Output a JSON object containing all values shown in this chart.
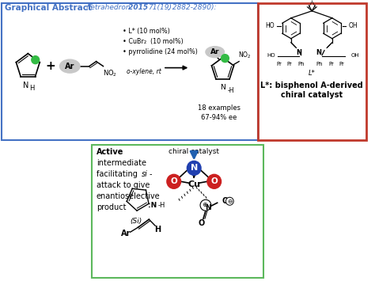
{
  "bg_color": "#ffffff",
  "top_box_color": "#4472c4",
  "right_box_color": "#c0392b",
  "bottom_box_color": "#5cb85c",
  "conditions": [
    "L* (10 mol%)",
    "CuBr2  (10 mol%)",
    "pyrrolidine (24 mol%)"
  ],
  "solvent": "o-xylene, rt",
  "yield_text": "18 examples\n67-94% ee",
  "right_label_line1": "L*: bisphenol A-derived",
  "right_label_line2": "chiral catalyst",
  "left_text_lines": [
    "Active",
    "intermediate",
    "facilitating si-",
    "attack to give",
    "enantioselective",
    "product"
  ],
  "chiral_text": "chiral catalyst",
  "n_color": "#2040b0",
  "o_color": "#cc2020",
  "arrow_color": "#2060b0"
}
